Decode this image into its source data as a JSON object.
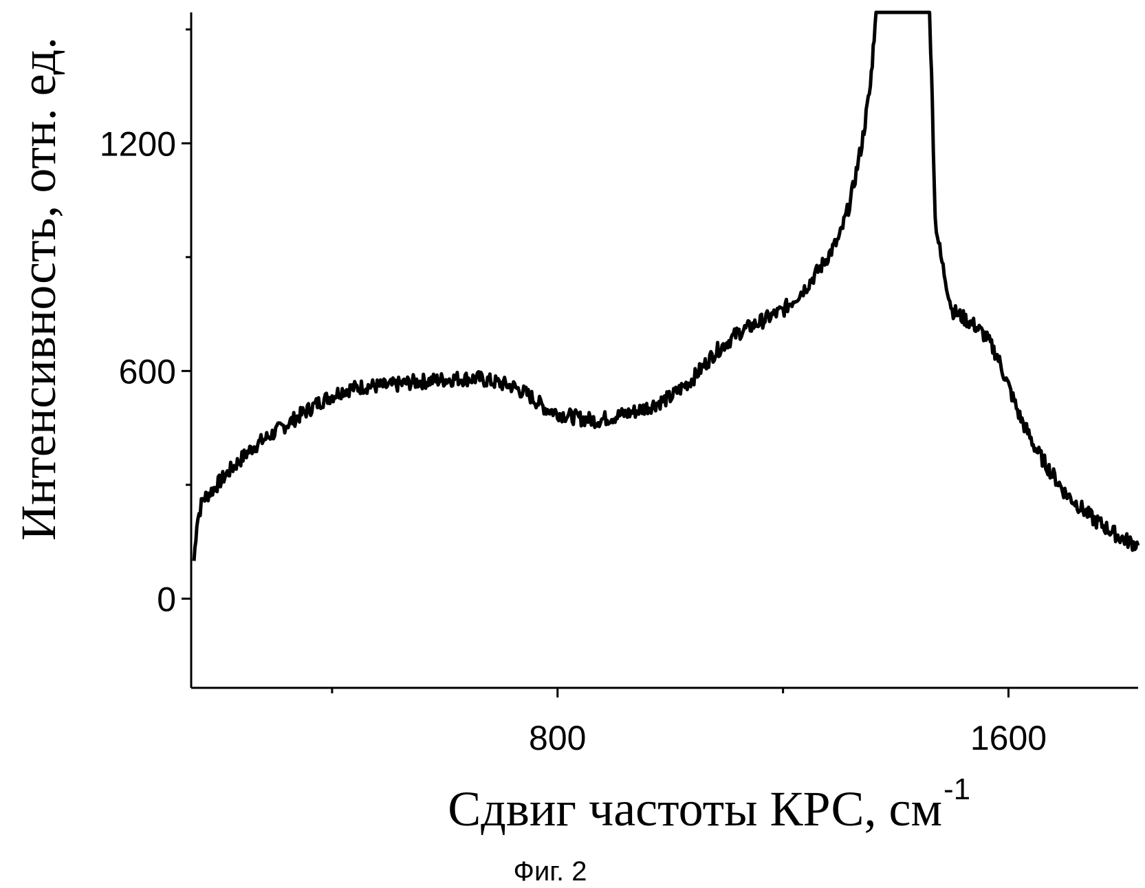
{
  "chart_data": {
    "type": "line",
    "title": "",
    "xlabel": "Сдвиг частоты КРС, см",
    "xlabel_superscript": "-1",
    "ylabel": "Интенсивность, отн. ед.",
    "xlim": [
      150,
      1830
    ],
    "ylim": [
      -235,
      1545
    ],
    "x_ticks": [
      800,
      1600
    ],
    "x_minor_ticks": [
      400,
      1200
    ],
    "y_ticks": [
      0,
      600,
      1200
    ],
    "y_minor_ticks": [
      300,
      900,
      1500
    ],
    "grid": false,
    "series": [
      {
        "x": [
          155,
          160,
          170,
          190,
          220,
          260,
          300,
          340,
          380,
          420,
          460,
          500,
          540,
          580,
          620,
          660,
          690,
          720,
          750,
          780,
          810,
          840,
          870,
          900,
          930,
          960,
          1000,
          1040,
          1080,
          1120,
          1160,
          1200,
          1240,
          1270,
          1300,
          1320,
          1340,
          1355,
          1360,
          1365,
          1370,
          1400,
          1440,
          1460,
          1462,
          1465,
          1470,
          1480,
          1500,
          1520,
          1540,
          1560,
          1580,
          1600,
          1620,
          1650,
          1700,
          1750,
          1800,
          1830
        ],
        "y": [
          100,
          200,
          260,
          290,
          340,
          400,
          440,
          480,
          520,
          550,
          560,
          560,
          570,
          575,
          580,
          580,
          570,
          560,
          535,
          500,
          485,
          475,
          470,
          480,
          490,
          505,
          530,
          580,
          650,
          700,
          730,
          760,
          820,
          880,
          950,
          1050,
          1200,
          1350,
          1450,
          1545,
          1545,
          1545,
          1545,
          1545,
          1450,
          1300,
          1000,
          900,
          760,
          740,
          720,
          690,
          640,
          560,
          480,
          390,
          280,
          210,
          160,
          140
        ]
      }
    ],
    "caption": "Фиг. 2"
  }
}
